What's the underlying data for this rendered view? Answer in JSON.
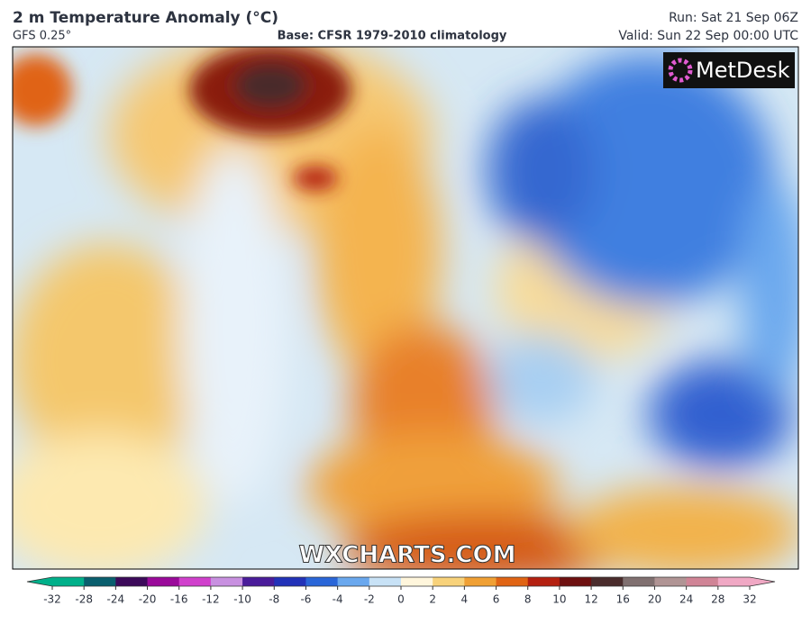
{
  "header": {
    "title": "2 m Temperature Anomaly (°C)",
    "model": "GFS 0.25°",
    "base": "Base: CFSR 1979-2010 climatology",
    "run": "Run: Sat 21 Sep 06Z",
    "valid": "Valid: Sun 22 Sep 00:00 UTC"
  },
  "logo": "MetDesk",
  "watermark": "WXCHARTS.COM",
  "colorbar": {
    "ticks": [
      -32,
      -28,
      -24,
      -20,
      -16,
      -12,
      -10,
      -8,
      -6,
      -4,
      -2,
      0,
      2,
      4,
      6,
      8,
      10,
      12,
      16,
      20,
      24,
      28,
      32
    ],
    "colors": [
      "#00b08a",
      "#0a5f6e",
      "#3c0a5a",
      "#9a0a9a",
      "#d040cc",
      "#c890e0",
      "#4a1c9a",
      "#2232b8",
      "#2a66d8",
      "#6aa8ee",
      "#c8e2f6",
      "#fff6dc",
      "#f8d27a",
      "#f0a034",
      "#e06414",
      "#b42010",
      "#6e1010",
      "#4a2c2c",
      "#807070",
      "#b09494",
      "#d08496",
      "#f0a8c4"
    ]
  }
}
